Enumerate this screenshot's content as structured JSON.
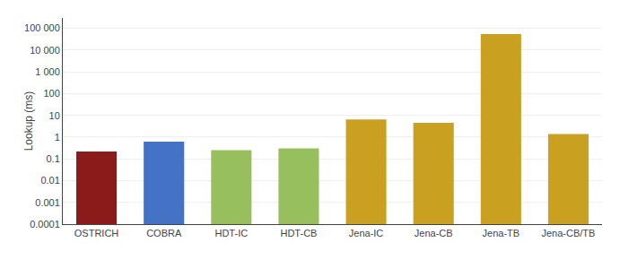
{
  "chart_data": {
    "type": "bar",
    "categories": [
      "OSTRICH",
      "COBRA",
      "HDT-IC",
      "HDT-CB",
      "Jena-IC",
      "Jena-CB",
      "Jena-TB",
      "Jena-CB/TB"
    ],
    "values": [
      0.22,
      0.62,
      0.25,
      0.3,
      6.5,
      4.5,
      55000,
      1.4
    ],
    "colors": [
      "#8B1A1A",
      "#4472C4",
      "#97BF5E",
      "#97BF5E",
      "#C9A020",
      "#C9A020",
      "#C9A020",
      "#C9A020"
    ],
    "ylabel": "Lookup (ms)",
    "log": "y",
    "ylim": [
      0.0001,
      300000
    ],
    "yticks": [
      0.0001,
      0.001,
      0.01,
      0.1,
      1,
      10,
      100,
      {
        "value": 1000,
        "label": "1 000"
      },
      {
        "value": 10000,
        "label": "10 000"
      },
      {
        "value": 100000,
        "label": "100 000"
      }
    ],
    "grid": true
  }
}
